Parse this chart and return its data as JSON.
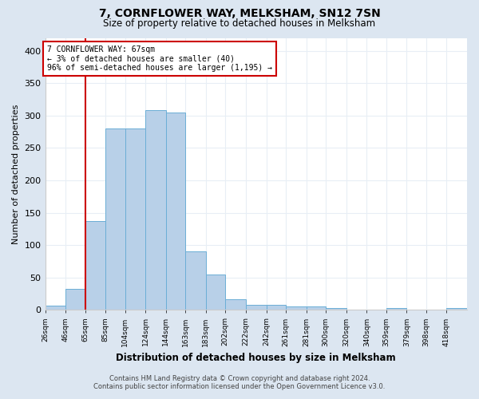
{
  "title": "7, CORNFLOWER WAY, MELKSHAM, SN12 7SN",
  "subtitle": "Size of property relative to detached houses in Melksham",
  "xlabel": "Distribution of detached houses by size in Melksham",
  "ylabel": "Number of detached properties",
  "bin_labels": [
    "26sqm",
    "46sqm",
    "65sqm",
    "85sqm",
    "104sqm",
    "124sqm",
    "144sqm",
    "163sqm",
    "183sqm",
    "202sqm",
    "222sqm",
    "242sqm",
    "261sqm",
    "281sqm",
    "300sqm",
    "320sqm",
    "340sqm",
    "359sqm",
    "379sqm",
    "398sqm",
    "418sqm"
  ],
  "bin_edges": [
    26,
    46,
    65,
    85,
    104,
    124,
    144,
    163,
    183,
    202,
    222,
    242,
    261,
    281,
    300,
    320,
    340,
    359,
    379,
    398,
    418,
    438
  ],
  "bar_heights": [
    6,
    32,
    137,
    280,
    280,
    308,
    305,
    90,
    55,
    16,
    8,
    8,
    5,
    5,
    3,
    0,
    0,
    3,
    0,
    0,
    3
  ],
  "bar_color": "#b8d0e8",
  "bar_edge_color": "#6baed6",
  "property_line_x": 65,
  "property_line_color": "#cc0000",
  "annotation_text": "7 CORNFLOWER WAY: 67sqm\n← 3% of detached houses are smaller (40)\n96% of semi-detached houses are larger (1,195) →",
  "annotation_box_color": "#cc0000",
  "ylim": [
    0,
    420
  ],
  "yticks": [
    0,
    50,
    100,
    150,
    200,
    250,
    300,
    350,
    400
  ],
  "figure_bg": "#dce6f1",
  "plot_bg": "#ffffff",
  "grid_color": "#e8eef5",
  "footer_line1": "Contains HM Land Registry data © Crown copyright and database right 2024.",
  "footer_line2": "Contains public sector information licensed under the Open Government Licence v3.0."
}
